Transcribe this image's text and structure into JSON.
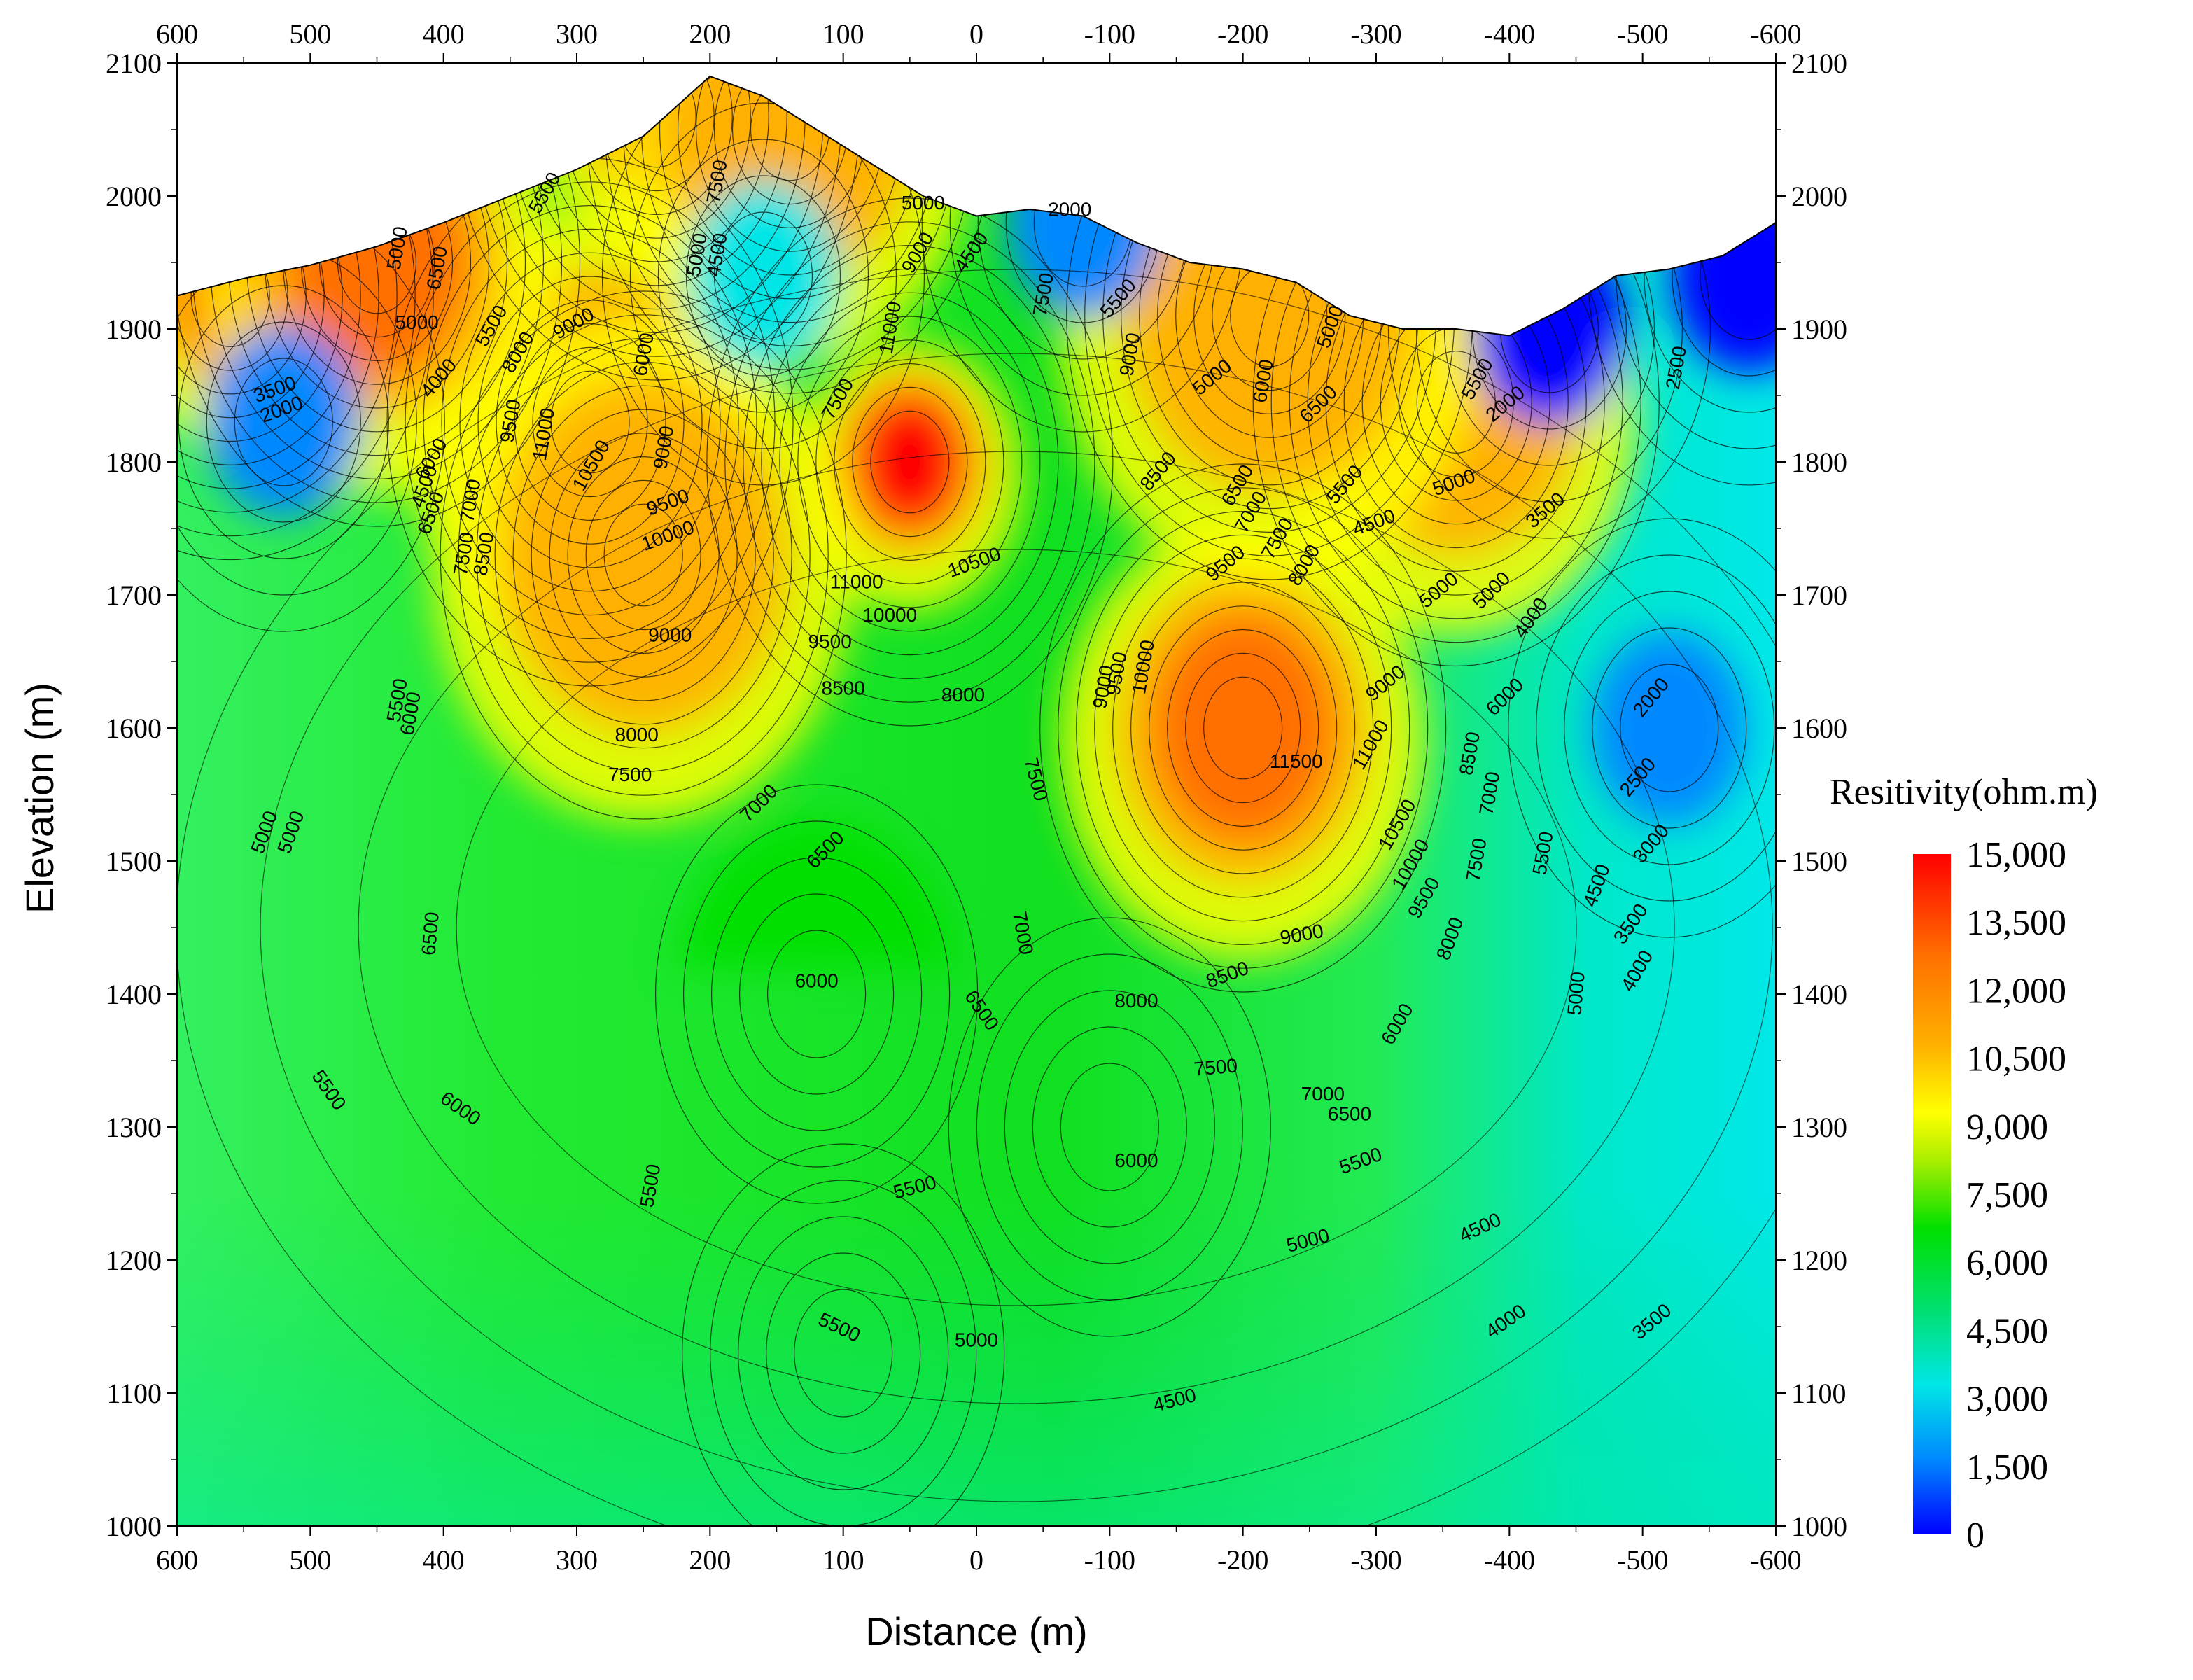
{
  "chart_data": {
    "type": "heatmap",
    "xlabel": "Distance (m)",
    "ylabel": "Elevation (m)",
    "xlim": [
      600,
      -600
    ],
    "ylim": [
      1000,
      2100
    ],
    "x_ticks": [
      "600",
      "500",
      "400",
      "300",
      "200",
      "100",
      "0",
      "-100",
      "-200",
      "-300",
      "-400",
      "-500",
      "-600"
    ],
    "y_ticks": [
      "1000",
      "1100",
      "1200",
      "1300",
      "1400",
      "1500",
      "1600",
      "1700",
      "1800",
      "1900",
      "2000",
      "2100"
    ],
    "grid": false,
    "colorbar": {
      "title": "Resitivity(ohm.m)",
      "range": [
        0,
        15000
      ],
      "ticks": [
        "15,000",
        "13,500",
        "12,000",
        "10,500",
        "9,000",
        "7,500",
        "6,000",
        "4,500",
        "3,000",
        "1,500",
        "0"
      ],
      "colors": [
        "#0000ff",
        "#0088ff",
        "#00e6e6",
        "#00e070",
        "#00e000",
        "#aaee00",
        "#ffff00",
        "#ffb000",
        "#ff7000",
        "#ff0000"
      ],
      "placement": "right"
    },
    "topography": [
      [
        600,
        1925
      ],
      [
        550,
        1938
      ],
      [
        500,
        1948
      ],
      [
        450,
        1962
      ],
      [
        400,
        1980
      ],
      [
        350,
        2000
      ],
      [
        300,
        2020
      ],
      [
        250,
        2045
      ],
      [
        200,
        2090
      ],
      [
        160,
        2075
      ],
      [
        120,
        2050
      ],
      [
        80,
        2025
      ],
      [
        40,
        2000
      ],
      [
        0,
        1985
      ],
      [
        -40,
        1990
      ],
      [
        -80,
        1985
      ],
      [
        -120,
        1965
      ],
      [
        -160,
        1950
      ],
      [
        -200,
        1945
      ],
      [
        -240,
        1935
      ],
      [
        -280,
        1910
      ],
      [
        -320,
        1900
      ],
      [
        -360,
        1900
      ],
      [
        -400,
        1895
      ],
      [
        -440,
        1915
      ],
      [
        -480,
        1940
      ],
      [
        -520,
        1945
      ],
      [
        -560,
        1955
      ],
      [
        -600,
        1980
      ]
    ],
    "anomalies": [
      {
        "x": 50,
        "y": 1800,
        "value": 14500
      },
      {
        "x": -200,
        "y": 1600,
        "value": 12000
      },
      {
        "x": 290,
        "y": 1830,
        "value": 11500
      },
      {
        "x": 250,
        "y": 1730,
        "value": 10500
      },
      {
        "x": 240,
        "y": 2060,
        "value": 13500
      },
      {
        "x": 560,
        "y": 1925,
        "value": 14000
      },
      {
        "x": 140,
        "y": 2050,
        "value": 11500
      },
      {
        "x": 450,
        "y": 1950,
        "value": 12000
      },
      {
        "x": -360,
        "y": 1845,
        "value": 11500
      },
      {
        "x": -220,
        "y": 1910,
        "value": 11000
      },
      {
        "x": 160,
        "y": 1940,
        "value": 3000
      },
      {
        "x": 520,
        "y": 1830,
        "value": 2500
      },
      {
        "x": -80,
        "y": 1980,
        "value": 2000
      },
      {
        "x": -430,
        "y": 1900,
        "value": 1200
      },
      {
        "x": -580,
        "y": 1940,
        "value": 1000
      },
      {
        "x": -520,
        "y": 1600,
        "value": 1800
      },
      {
        "x": 120,
        "y": 1400,
        "value": 6000
      },
      {
        "x": -100,
        "y": 1300,
        "value": 5500
      },
      {
        "x": 100,
        "y": 1130,
        "value": 5800
      }
    ],
    "contour_labels": [
      {
        "x": 105,
        "y": 1145,
        "text": "5500",
        "rot": 25
      },
      {
        "x": 0,
        "y": 1135,
        "text": "5000",
        "rot": 0
      },
      {
        "x": -150,
        "y": 1090,
        "text": "4500",
        "rot": -15
      },
      {
        "x": -250,
        "y": 1210,
        "text": "5000",
        "rot": -15
      },
      {
        "x": -380,
        "y": 1220,
        "text": "4500",
        "rot": -25
      },
      {
        "x": -400,
        "y": 1150,
        "text": "4000",
        "rot": -35
      },
      {
        "x": -510,
        "y": 1150,
        "text": "3500",
        "rot": -40
      },
      {
        "x": 45,
        "y": 1250,
        "text": "5500",
        "rot": -15
      },
      {
        "x": 240,
        "y": 1255,
        "text": "5500",
        "rot": -80
      },
      {
        "x": -120,
        "y": 1270,
        "text": "6000",
        "rot": 0
      },
      {
        "x": -290,
        "y": 1270,
        "text": "5500",
        "rot": -20
      },
      {
        "x": 390,
        "y": 1310,
        "text": "6000",
        "rot": 35
      },
      {
        "x": 490,
        "y": 1325,
        "text": "5500",
        "rot": 55
      },
      {
        "x": 510,
        "y": 1520,
        "text": "5000",
        "rot": -70
      },
      {
        "x": 405,
        "y": 1445,
        "text": "6500",
        "rot": -85
      },
      {
        "x": 120,
        "y": 1405,
        "text": "6000",
        "rot": 0
      },
      {
        "x": 0,
        "y": 1385,
        "text": "6500",
        "rot": 55
      },
      {
        "x": -30,
        "y": 1445,
        "text": "7000",
        "rot": 80
      },
      {
        "x": 110,
        "y": 1505,
        "text": "6500",
        "rot": -45
      },
      {
        "x": 160,
        "y": 1540,
        "text": "7000",
        "rot": -45
      },
      {
        "x": 260,
        "y": 1560,
        "text": "7500",
        "rot": 0
      },
      {
        "x": 255,
        "y": 1590,
        "text": "8000",
        "rot": 0
      },
      {
        "x": -40,
        "y": 1560,
        "text": "7500",
        "rot": 75
      },
      {
        "x": -120,
        "y": 1390,
        "text": "8000",
        "rot": 0
      },
      {
        "x": -190,
        "y": 1410,
        "text": "8500",
        "rot": -20
      },
      {
        "x": -180,
        "y": 1340,
        "text": "7500",
        "rot": -5
      },
      {
        "x": -260,
        "y": 1320,
        "text": "7000",
        "rot": 0
      },
      {
        "x": -280,
        "y": 1305,
        "text": "6500",
        "rot": 0
      },
      {
        "x": -245,
        "y": 1440,
        "text": "9000",
        "rot": -10
      },
      {
        "x": -320,
        "y": 1375,
        "text": "6000",
        "rot": -60
      },
      {
        "x": -360,
        "y": 1440,
        "text": "8000",
        "rot": -70
      },
      {
        "x": -380,
        "y": 1500,
        "text": "7500",
        "rot": -80
      },
      {
        "x": -430,
        "y": 1505,
        "text": "5500",
        "rot": -80
      },
      {
        "x": -470,
        "y": 1480,
        "text": "4500",
        "rot": -70
      },
      {
        "x": -455,
        "y": 1400,
        "text": "5000",
        "rot": -85
      },
      {
        "x": -500,
        "y": 1415,
        "text": "4000",
        "rot": -60
      },
      {
        "x": -510,
        "y": 1510,
        "text": "3000",
        "rot": -50
      },
      {
        "x": -495,
        "y": 1450,
        "text": "3500",
        "rot": -55
      },
      {
        "x": -500,
        "y": 1560,
        "text": "2500",
        "rot": -50
      },
      {
        "x": -510,
        "y": 1620,
        "text": "2000",
        "rot": -50
      },
      {
        "x": -320,
        "y": 1525,
        "text": "10500",
        "rot": -60
      },
      {
        "x": -330,
        "y": 1495,
        "text": "10000",
        "rot": -60
      },
      {
        "x": -340,
        "y": 1470,
        "text": "9500",
        "rot": -60
      },
      {
        "x": -240,
        "y": 1570,
        "text": "11500",
        "rot": 0
      },
      {
        "x": -300,
        "y": 1585,
        "text": "11000",
        "rot": -60
      },
      {
        "x": -310,
        "y": 1630,
        "text": "9000",
        "rot": -40
      },
      {
        "x": -375,
        "y": 1580,
        "text": "8500",
        "rot": -80
      },
      {
        "x": -390,
        "y": 1550,
        "text": "7000",
        "rot": -80
      },
      {
        "x": -400,
        "y": 1620,
        "text": "6000",
        "rot": -45
      },
      {
        "x": -390,
        "y": 1700,
        "text": "5000",
        "rot": -45
      },
      {
        "x": -420,
        "y": 1680,
        "text": "4000",
        "rot": -55
      },
      {
        "x": -430,
        "y": 1760,
        "text": "3500",
        "rot": -40
      },
      {
        "x": -100,
        "y": 1630,
        "text": "9000",
        "rot": -80
      },
      {
        "x": -110,
        "y": 1640,
        "text": "9500",
        "rot": -80
      },
      {
        "x": -130,
        "y": 1645,
        "text": "10000",
        "rot": -80
      },
      {
        "x": 10,
        "y": 1620,
        "text": "8000",
        "rot": 0
      },
      {
        "x": 100,
        "y": 1625,
        "text": "8500",
        "rot": 0
      },
      {
        "x": 110,
        "y": 1660,
        "text": "9500",
        "rot": 0
      },
      {
        "x": 65,
        "y": 1680,
        "text": "10000",
        "rot": 0
      },
      {
        "x": 90,
        "y": 1705,
        "text": "11000",
        "rot": 0
      },
      {
        "x": 0,
        "y": 1720,
        "text": "10500",
        "rot": -20
      },
      {
        "x": 230,
        "y": 1665,
        "text": "9000",
        "rot": 0
      },
      {
        "x": 230,
        "y": 1740,
        "text": "10000",
        "rot": -20
      },
      {
        "x": 230,
        "y": 1765,
        "text": "9500",
        "rot": -20
      },
      {
        "x": 285,
        "y": 1795,
        "text": "10500",
        "rot": -60
      },
      {
        "x": 320,
        "y": 1820,
        "text": "11000",
        "rot": -80
      },
      {
        "x": 345,
        "y": 1830,
        "text": "9500",
        "rot": -80
      },
      {
        "x": 375,
        "y": 1770,
        "text": "7000",
        "rot": -80
      },
      {
        "x": 380,
        "y": 1730,
        "text": "7500",
        "rot": -80
      },
      {
        "x": 365,
        "y": 1730,
        "text": "8500",
        "rot": -80
      },
      {
        "x": 410,
        "y": 1780,
        "text": "4500",
        "rot": -70
      },
      {
        "x": 405,
        "y": 1760,
        "text": "6500",
        "rot": -70
      },
      {
        "x": 405,
        "y": 1800,
        "text": "6000",
        "rot": -60
      },
      {
        "x": 430,
        "y": 1620,
        "text": "5500",
        "rot": -80
      },
      {
        "x": 420,
        "y": 1610,
        "text": "6000",
        "rot": -80
      },
      {
        "x": 530,
        "y": 1520,
        "text": "5000",
        "rot": -70
      },
      {
        "x": 400,
        "y": 1860,
        "text": "4000",
        "rot": -50
      },
      {
        "x": 340,
        "y": 1880,
        "text": "8000",
        "rot": -60
      },
      {
        "x": 300,
        "y": 1900,
        "text": "9000",
        "rot": -30
      },
      {
        "x": 360,
        "y": 1900,
        "text": "5500",
        "rot": -60
      },
      {
        "x": 420,
        "y": 1900,
        "text": "5000",
        "rot": 0
      },
      {
        "x": 400,
        "y": 1945,
        "text": "6500",
        "rot": -80
      },
      {
        "x": 430,
        "y": 1960,
        "text": "5000",
        "rot": -80
      },
      {
        "x": 320,
        "y": 2000,
        "text": "5500",
        "rot": -60
      },
      {
        "x": 525,
        "y": 1850,
        "text": "3500",
        "rot": -20
      },
      {
        "x": 520,
        "y": 1835,
        "text": "2000",
        "rot": -20
      },
      {
        "x": 190,
        "y": 2010,
        "text": "7500",
        "rot": -80
      },
      {
        "x": 205,
        "y": 1955,
        "text": "5000",
        "rot": -80
      },
      {
        "x": 190,
        "y": 1955,
        "text": "4500",
        "rot": -80
      },
      {
        "x": 245,
        "y": 1880,
        "text": "6000",
        "rot": -80
      },
      {
        "x": 230,
        "y": 1810,
        "text": "9000",
        "rot": -80
      },
      {
        "x": 100,
        "y": 1845,
        "text": "7500",
        "rot": -60
      },
      {
        "x": 60,
        "y": 1900,
        "text": "11000",
        "rot": -80
      },
      {
        "x": 40,
        "y": 1955,
        "text": "9000",
        "rot": -60
      },
      {
        "x": 40,
        "y": 1990,
        "text": "5000",
        "rot": 0
      },
      {
        "x": 0,
        "y": 1955,
        "text": "4500",
        "rot": -55
      },
      {
        "x": -70,
        "y": 1985,
        "text": "2000",
        "rot": 0
      },
      {
        "x": -55,
        "y": 1925,
        "text": "7500",
        "rot": -80
      },
      {
        "x": -110,
        "y": 1920,
        "text": "5500",
        "rot": -50
      },
      {
        "x": -120,
        "y": 1880,
        "text": "9000",
        "rot": -80
      },
      {
        "x": -180,
        "y": 1860,
        "text": "5000",
        "rot": -40
      },
      {
        "x": -220,
        "y": 1860,
        "text": "6000",
        "rot": -80
      },
      {
        "x": -270,
        "y": 1900,
        "text": "5000",
        "rot": -70
      },
      {
        "x": -260,
        "y": 1840,
        "text": "6500",
        "rot": -45
      },
      {
        "x": -280,
        "y": 1780,
        "text": "5500",
        "rot": -50
      },
      {
        "x": -300,
        "y": 1750,
        "text": "4500",
        "rot": -20
      },
      {
        "x": -350,
        "y": 1700,
        "text": "5000",
        "rot": -40
      },
      {
        "x": -360,
        "y": 1780,
        "text": "5000",
        "rot": -20
      },
      {
        "x": -200,
        "y": 1780,
        "text": "6500",
        "rot": -60
      },
      {
        "x": -210,
        "y": 1760,
        "text": "7000",
        "rot": -60
      },
      {
        "x": -230,
        "y": 1740,
        "text": "7500",
        "rot": -60
      },
      {
        "x": -250,
        "y": 1720,
        "text": "8000",
        "rot": -60
      },
      {
        "x": -140,
        "y": 1790,
        "text": "8500",
        "rot": -50
      },
      {
        "x": -190,
        "y": 1720,
        "text": "9500",
        "rot": -40
      },
      {
        "x": -380,
        "y": 1860,
        "text": "5500",
        "rot": -60
      },
      {
        "x": -400,
        "y": 1840,
        "text": "2000",
        "rot": -40
      },
      {
        "x": -530,
        "y": 1870,
        "text": "2500",
        "rot": -80
      }
    ]
  }
}
